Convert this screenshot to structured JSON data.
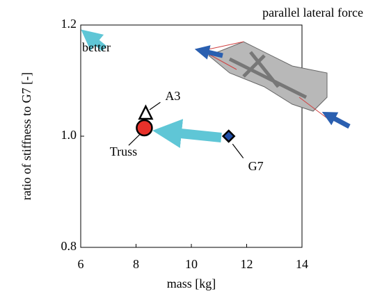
{
  "chart_data": {
    "type": "scatter",
    "title": "parallel lateral force",
    "annotation": "better",
    "xlabel": "mass [kg]",
    "ylabel": "ratio of stiffness to G7 [-]",
    "xlim": [
      6,
      14
    ],
    "xticks": [
      6,
      8,
      10,
      12,
      14
    ],
    "ylim": [
      0.8,
      1.2
    ],
    "yticks": [
      0.8,
      {
        "value": 1.0,
        "label": "1.0"
      },
      1.2
    ],
    "series": [
      {
        "name": "G7",
        "color": "#1f4ea8",
        "marker": "diamond",
        "x": [
          11.35
        ],
        "values": [
          1.0
        ]
      },
      {
        "name": "Truss",
        "color": "#e8312a",
        "marker": "circle",
        "x": [
          8.3
        ],
        "values": [
          1.015
        ]
      },
      {
        "name": "A3",
        "color": "#ffffff",
        "marker": "triangle",
        "x": [
          8.35
        ],
        "values": [
          1.04
        ]
      }
    ]
  }
}
